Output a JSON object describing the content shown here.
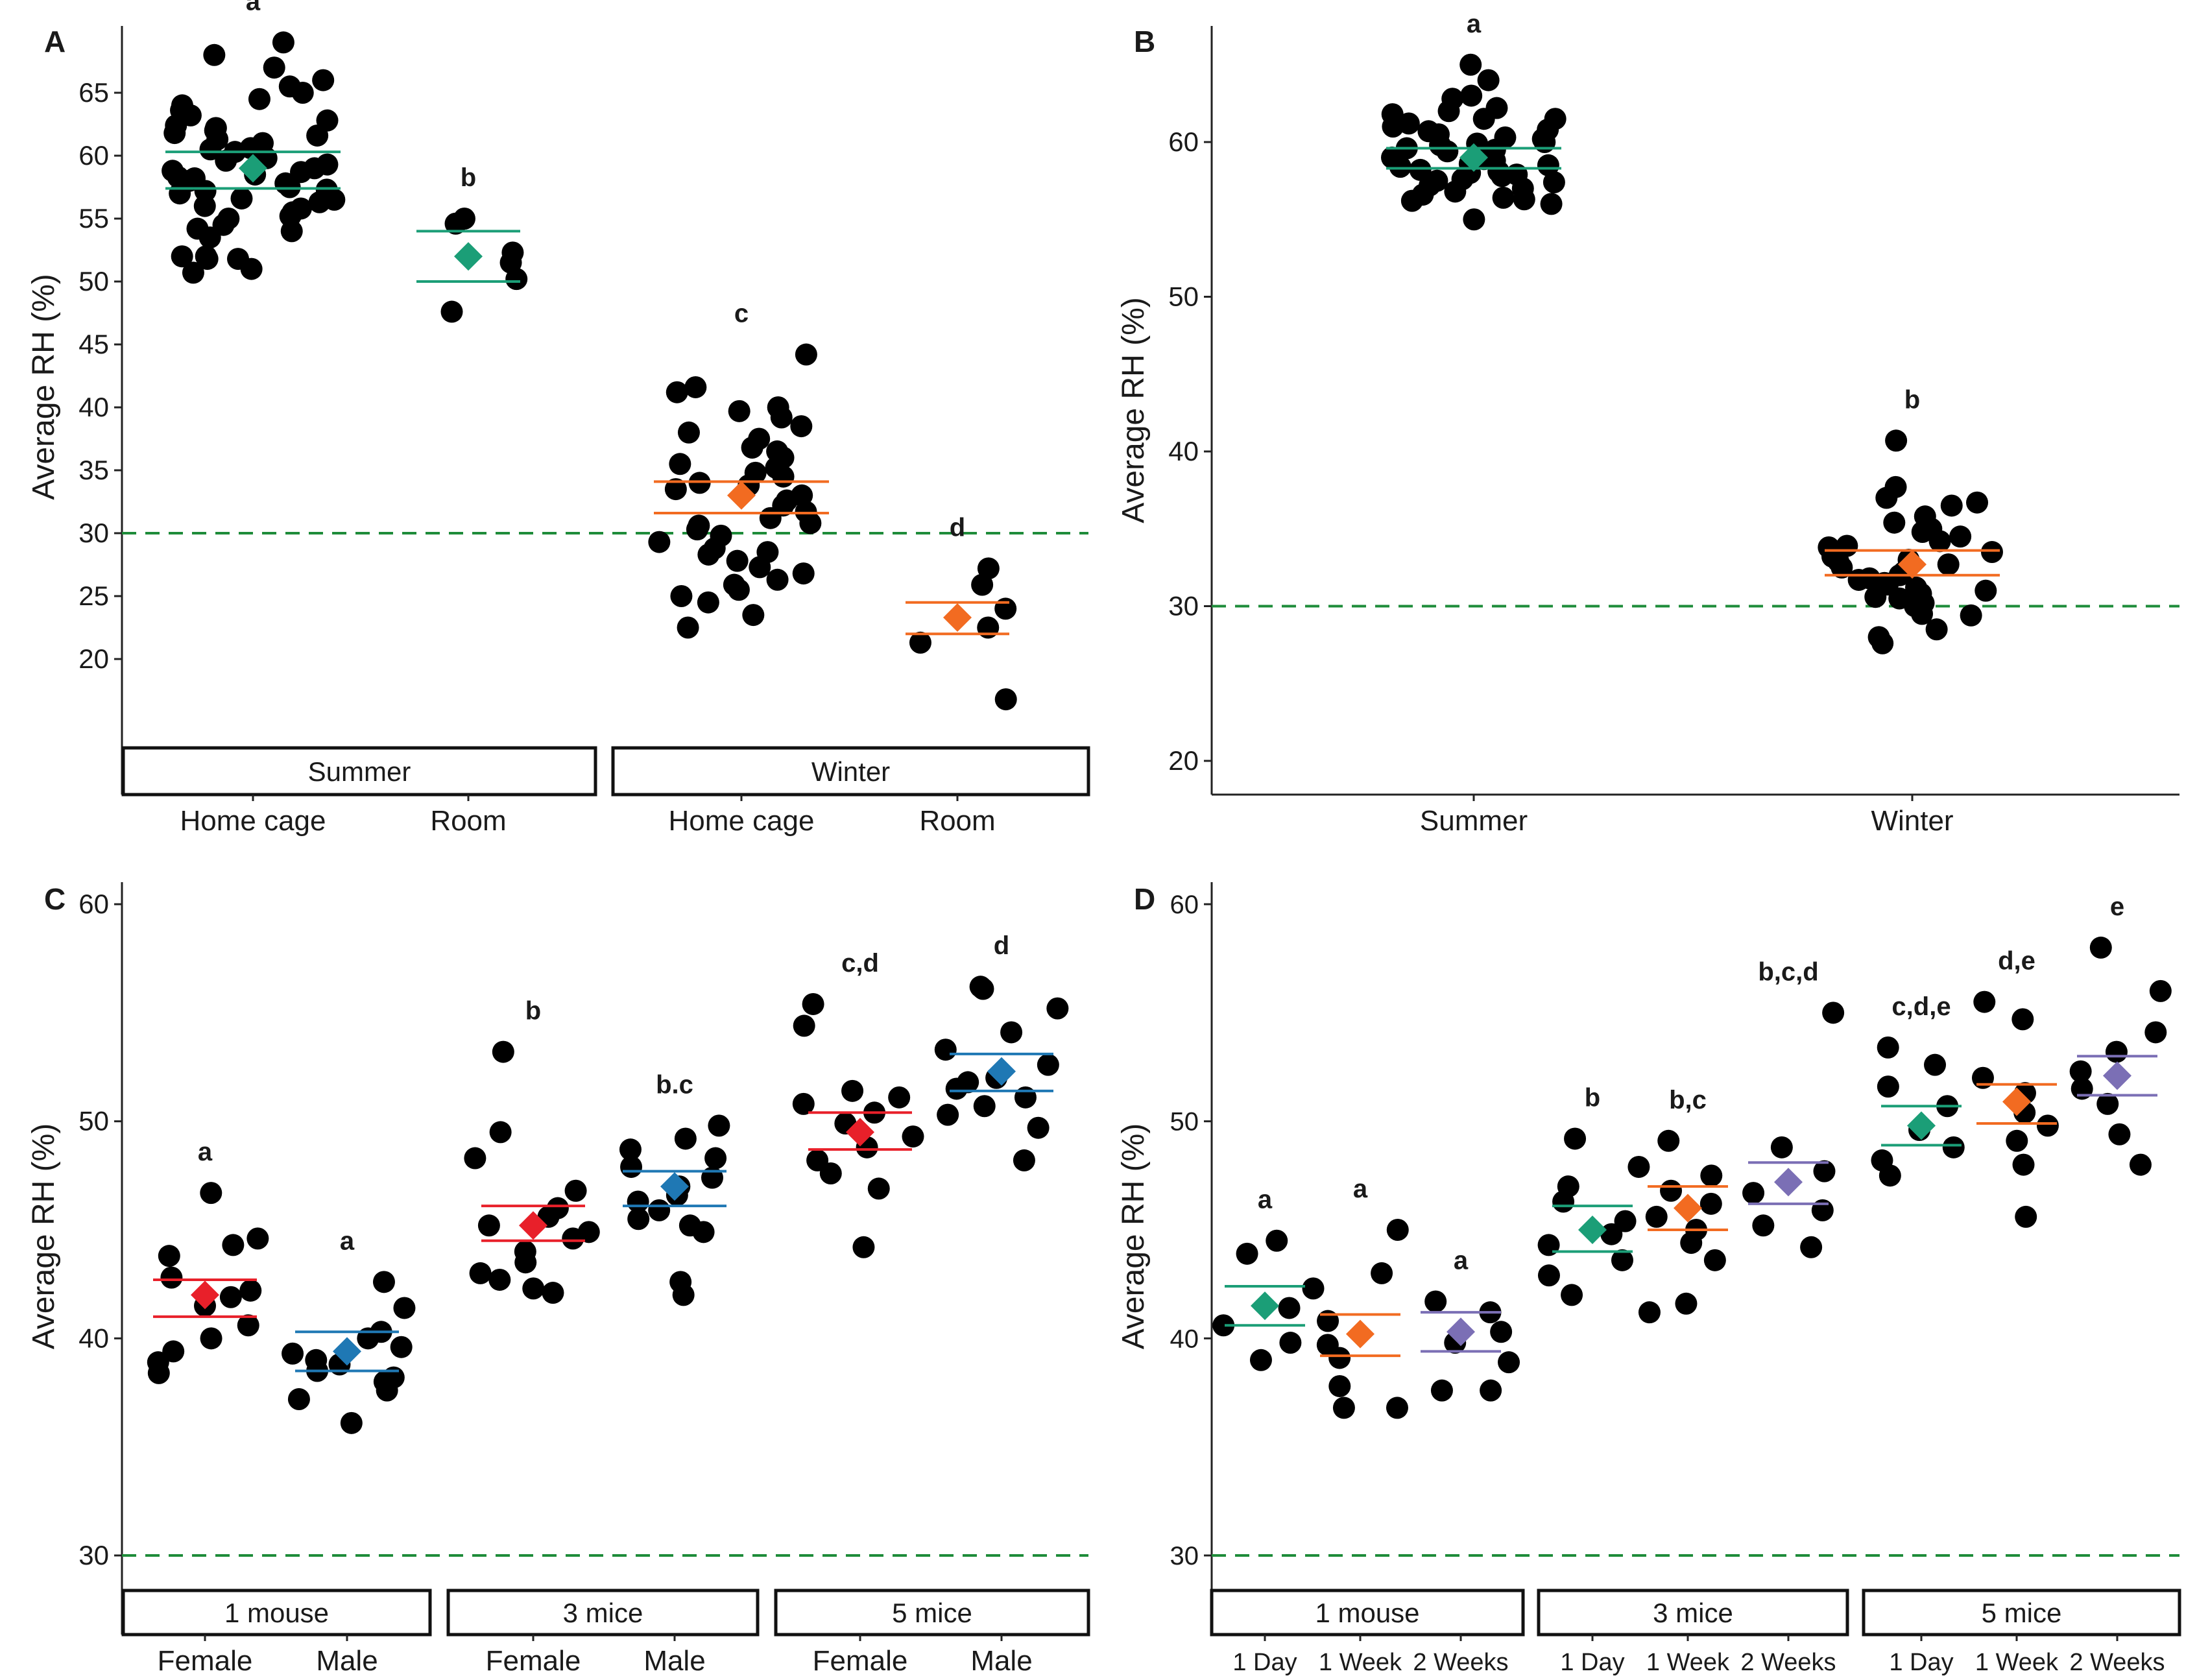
{
  "colors": {
    "green": "#1b9e77",
    "orange": "#f26b21",
    "red": "#e8202a",
    "blue": "#1f78b4",
    "purple": "#7b6fb5",
    "reference": "#1e8c3a",
    "point": "#000000"
  },
  "reference_line_value": 30,
  "chart_data": [
    {
      "panel": "A",
      "type": "scatter",
      "ylabel": "Average RH (%)",
      "yticks": [
        20,
        25,
        30,
        35,
        40,
        45,
        50,
        55,
        60,
        65
      ],
      "ylim": [
        15,
        70
      ],
      "facets": [
        "Summer",
        "Winter"
      ],
      "groups": [
        {
          "facet": "Summer",
          "label": "Home cage",
          "letter": "a",
          "color": "green",
          "mean": 59,
          "ci": [
            57.4,
            60.3
          ],
          "points": [
            51.8,
            52.0,
            51.8,
            52.0,
            51.0,
            50.7,
            53.5,
            54.0,
            54.2,
            54.5,
            55.0,
            55.2,
            55.5,
            55.8,
            56.0,
            56.3,
            56.6,
            57.0,
            57.2,
            57.5,
            57.8,
            58.0,
            58.3,
            58.5,
            58.8,
            59.0,
            59.3,
            59.6,
            60.0,
            60.3,
            60.6,
            61.0,
            61.3,
            61.6,
            62.0,
            62.4,
            62.8,
            63.2,
            63.6,
            64.0,
            64.5,
            65.0,
            65.5,
            66.0,
            67.0,
            68.0,
            69.0,
            56.5,
            58.2,
            60.5,
            62.2,
            58.7,
            61.8,
            57.3,
            59.8
          ]
        },
        {
          "facet": "Summer",
          "label": "Room",
          "letter": "b",
          "color": "green",
          "mean": 52,
          "ci": [
            50,
            54
          ],
          "points": [
            55,
            54.6,
            52.3,
            51.5,
            50.2,
            47.6
          ]
        },
        {
          "facet": "Winter",
          "label": "Home cage",
          "letter": "c",
          "color": "orange",
          "mean": 33,
          "ci": [
            31.6,
            34.1
          ],
          "points": [
            44.2,
            41.6,
            41.2,
            40.0,
            39.7,
            39.2,
            38.5,
            38.0,
            37.5,
            36.5,
            36.0,
            35.5,
            35.2,
            34.8,
            34.5,
            34.0,
            33.5,
            33.0,
            32.6,
            32.2,
            31.7,
            31.2,
            30.8,
            30.3,
            29.8,
            29.3,
            28.8,
            28.3,
            27.8,
            27.3,
            26.8,
            26.3,
            25.9,
            25.5,
            25.0,
            24.5,
            23.5,
            22.5,
            36.8,
            33.8,
            30.6,
            28.5
          ]
        },
        {
          "facet": "Winter",
          "label": "Room",
          "letter": "d",
          "color": "orange",
          "mean": 23.3,
          "ci": [
            22,
            24.5
          ],
          "points": [
            27.2,
            25.9,
            24.0,
            22.5,
            21.3,
            16.8
          ]
        }
      ]
    },
    {
      "panel": "B",
      "type": "scatter",
      "ylabel": "Average RH (%)",
      "yticks": [
        20,
        30,
        40,
        50,
        60
      ],
      "ylim": [
        18.5,
        67.5
      ],
      "groups": [
        {
          "label": "Summer",
          "letter": "a",
          "color": "green",
          "mean": 59,
          "ci": [
            58.3,
            59.6
          ],
          "points": [
            65.0,
            64.0,
            63.0,
            62.2,
            62.0,
            61.8,
            61.5,
            61.2,
            61.0,
            60.8,
            60.5,
            60.2,
            60.0,
            59.8,
            59.6,
            59.4,
            59.2,
            59.0,
            58.8,
            58.6,
            58.4,
            58.2,
            58.0,
            57.8,
            57.6,
            57.4,
            57.2,
            57.0,
            56.8,
            56.6,
            56.4,
            56.2,
            56.0,
            55.0,
            59.5,
            58.5,
            60.3,
            57.5,
            61.5,
            58.1,
            59.9,
            60.7,
            56.3,
            57.9,
            62.8,
            58.9
          ]
        },
        {
          "label": "Winter",
          "letter": "b",
          "color": "orange",
          "mean": 32.7,
          "ci": [
            32,
            33.6
          ],
          "points": [
            40.7,
            37.7,
            37.0,
            36.7,
            36.5,
            35.8,
            35.0,
            34.5,
            34.2,
            33.8,
            33.5,
            33.2,
            33.0,
            32.7,
            32.5,
            32.2,
            32.0,
            31.8,
            31.5,
            31.2,
            31.0,
            30.8,
            30.5,
            30.2,
            30.0,
            29.8,
            29.5,
            28.5,
            28.0,
            27.6,
            31.4,
            33.9,
            30.6,
            32.9,
            35.4,
            29.4,
            31.7,
            34.8
          ]
        }
      ]
    },
    {
      "panel": "C",
      "type": "scatter",
      "ylabel": "Average RH (%)",
      "yticks": [
        30,
        40,
        50,
        60
      ],
      "ylim": [
        28.4,
        61.5
      ],
      "facets": [
        "1 mouse",
        "3 mice",
        "5 mice"
      ],
      "groups": [
        {
          "facet": "1 mouse",
          "label": "Female",
          "letter": "a",
          "color": "red",
          "mean": 42,
          "ci": [
            41,
            42.7
          ],
          "points": [
            46.7,
            44.6,
            44.3,
            43.8,
            42.8,
            42.2,
            41.9,
            41.5,
            40.6,
            40.0,
            39.4,
            38.9,
            38.4
          ]
        },
        {
          "facet": "1 mouse",
          "label": "Male",
          "letter": "a",
          "color": "blue",
          "mean": 39.4,
          "ci": [
            38.5,
            40.3
          ],
          "points": [
            42.6,
            41.4,
            40.3,
            40.0,
            39.6,
            39.3,
            39.0,
            38.8,
            38.5,
            38.2,
            38.0,
            37.6,
            37.2,
            36.1
          ]
        },
        {
          "facet": "3 mice",
          "label": "Female",
          "letter": "b",
          "color": "red",
          "mean": 45.2,
          "ci": [
            44.5,
            46.1
          ],
          "points": [
            53.2,
            49.5,
            48.3,
            46.8,
            46.0,
            45.6,
            45.2,
            44.9,
            44.6,
            44.0,
            43.5,
            43.0,
            42.7,
            42.3,
            42.1
          ]
        },
        {
          "facet": "3 mice",
          "label": "Male",
          "letter": "b.c",
          "color": "blue",
          "mean": 47,
          "ci": [
            46.1,
            47.7
          ],
          "points": [
            49.8,
            49.2,
            48.7,
            48.3,
            47.9,
            47.4,
            47.0,
            46.6,
            46.3,
            45.9,
            45.5,
            45.2,
            44.9,
            42.6,
            42.0
          ]
        },
        {
          "facet": "5 mice",
          "label": "Female",
          "letter": "c,d",
          "color": "red",
          "mean": 49.5,
          "ci": [
            48.7,
            50.4
          ],
          "points": [
            55.4,
            54.4,
            51.4,
            51.1,
            50.8,
            50.4,
            49.9,
            49.3,
            48.8,
            48.2,
            47.6,
            46.9,
            44.2
          ]
        },
        {
          "facet": "5 mice",
          "label": "Male",
          "letter": "d",
          "color": "blue",
          "mean": 52.3,
          "ci": [
            51.4,
            53.1
          ],
          "points": [
            56.2,
            56.1,
            55.2,
            54.1,
            53.3,
            52.6,
            52.0,
            51.5,
            51.1,
            50.7,
            50.3,
            49.7,
            48.2,
            51.8
          ]
        }
      ]
    },
    {
      "panel": "D",
      "type": "scatter",
      "ylabel": "Average RH (%)",
      "yticks": [
        30,
        40,
        50,
        60
      ],
      "ylim": [
        28.4,
        61.5
      ],
      "facets": [
        "1 mouse",
        "3 mice",
        "5 mice"
      ],
      "groups": [
        {
          "facet": "1 mouse",
          "label": "1 Day",
          "letter": "a",
          "color": "green",
          "mean": 41.5,
          "ci": [
            40.6,
            42.4
          ],
          "points": [
            44.5,
            43.9,
            42.3,
            41.4,
            40.6,
            39.8,
            39.0
          ]
        },
        {
          "facet": "1 mouse",
          "label": "1 Week",
          "letter": "a",
          "color": "orange",
          "mean": 40.2,
          "ci": [
            39.2,
            41.1
          ],
          "points": [
            45.0,
            43.0,
            40.8,
            39.7,
            39.1,
            37.8,
            36.8,
            36.8
          ]
        },
        {
          "facet": "1 mouse",
          "label": "2 Weeks",
          "letter": "a",
          "color": "purple",
          "mean": 40.3,
          "ci": [
            39.4,
            41.2
          ],
          "points": [
            41.7,
            41.2,
            40.3,
            39.8,
            38.9,
            37.6,
            37.6
          ]
        },
        {
          "facet": "3 mice",
          "label": "1 Day",
          "letter": "b",
          "color": "green",
          "mean": 45,
          "ci": [
            44,
            46.1
          ],
          "points": [
            49.2,
            47.9,
            47.0,
            46.3,
            45.4,
            44.8,
            44.3,
            43.6,
            42.9,
            42.0
          ]
        },
        {
          "facet": "3 mice",
          "label": "1 Week",
          "letter": "b,c",
          "color": "orange",
          "mean": 46,
          "ci": [
            45,
            47
          ],
          "points": [
            49.1,
            47.5,
            46.8,
            46.2,
            45.6,
            45.0,
            44.4,
            43.6,
            41.6,
            41.2
          ]
        },
        {
          "facet": "3 mice",
          "label": "2 Weeks",
          "letter": "b,c,d",
          "color": "purple",
          "mean": 47.2,
          "ci": [
            46.2,
            48.1
          ],
          "points": [
            55.0,
            48.8,
            47.7,
            46.7,
            45.9,
            45.2,
            44.2
          ]
        },
        {
          "facet": "5 mice",
          "label": "1 Day",
          "letter": "c,d,e",
          "color": "green",
          "mean": 49.8,
          "ci": [
            48.9,
            50.7
          ],
          "points": [
            53.4,
            52.6,
            51.6,
            50.7,
            49.6,
            48.8,
            48.2,
            47.5
          ]
        },
        {
          "facet": "5 mice",
          "label": "1 Week",
          "letter": "d,e",
          "color": "orange",
          "mean": 50.9,
          "ci": [
            49.9,
            51.7
          ],
          "points": [
            55.5,
            54.7,
            52.0,
            51.3,
            50.4,
            49.8,
            49.1,
            48.0,
            45.6
          ]
        },
        {
          "facet": "5 mice",
          "label": "2 Weeks",
          "letter": "e",
          "color": "purple",
          "mean": 52.1,
          "ci": [
            51.2,
            53
          ],
          "points": [
            58.0,
            56.0,
            54.1,
            53.2,
            52.3,
            51.5,
            50.8,
            49.4,
            48.0
          ]
        }
      ]
    }
  ]
}
